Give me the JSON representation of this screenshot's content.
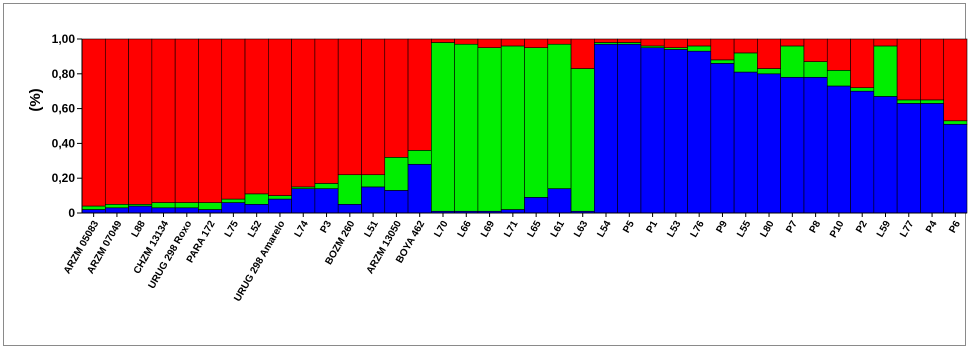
{
  "chart_data": {
    "type": "bar",
    "stacked": true,
    "normalized": true,
    "ylabel": "(%)",
    "xlabel": "",
    "ylim": [
      0,
      1
    ],
    "yticks": [
      "0",
      "0,20",
      "0,40",
      "0,60",
      "0,80",
      "1,00"
    ],
    "grid": false,
    "legend": "none",
    "colors": {
      "blue": "#0000ff",
      "green": "#00ee00",
      "red": "#ff0000"
    },
    "categories": [
      "ARZM 05083",
      "ARZM 07049",
      "L88",
      "CHZM 13134",
      "URUG 298 Roxo",
      "PARA 172",
      "L75",
      "L52",
      "URUG 298 Amarelo",
      "L74",
      "P3",
      "BOZM 260",
      "L51",
      "ARZM 13050",
      "BOYA 462",
      "L70",
      "L66",
      "L69",
      "L71",
      "L65",
      "L61",
      "L63",
      "L54",
      "P5",
      "P1",
      "L53",
      "L76",
      "P9",
      "L55",
      "L80",
      "P7",
      "P8",
      "P10",
      "P2",
      "L59",
      "L77",
      "P4",
      "P6"
    ],
    "series": [
      {
        "color": "blue",
        "values": [
          0.02,
          0.03,
          0.04,
          0.03,
          0.03,
          0.02,
          0.06,
          0.05,
          0.08,
          0.14,
          0.14,
          0.05,
          0.15,
          0.13,
          0.28,
          0.01,
          0.01,
          0.01,
          0.02,
          0.09,
          0.14,
          0.01,
          0.97,
          0.97,
          0.95,
          0.94,
          0.93,
          0.86,
          0.81,
          0.8,
          0.78,
          0.78,
          0.73,
          0.7,
          0.67,
          0.63,
          0.63,
          0.51
        ]
      },
      {
        "color": "green",
        "values": [
          0.02,
          0.02,
          0.01,
          0.03,
          0.03,
          0.04,
          0.02,
          0.06,
          0.02,
          0.01,
          0.03,
          0.17,
          0.07,
          0.19,
          0.08,
          0.97,
          0.96,
          0.94,
          0.94,
          0.86,
          0.83,
          0.82,
          0.01,
          0.01,
          0.01,
          0.01,
          0.03,
          0.02,
          0.11,
          0.03,
          0.18,
          0.09,
          0.09,
          0.02,
          0.29,
          0.02,
          0.02,
          0.02
        ]
      },
      {
        "color": "red",
        "values": [
          0.96,
          0.95,
          0.95,
          0.94,
          0.94,
          0.94,
          0.92,
          0.89,
          0.9,
          0.85,
          0.83,
          0.78,
          0.78,
          0.68,
          0.64,
          0.02,
          0.03,
          0.05,
          0.04,
          0.05,
          0.03,
          0.17,
          0.02,
          0.02,
          0.04,
          0.05,
          0.04,
          0.12,
          0.08,
          0.17,
          0.04,
          0.13,
          0.18,
          0.28,
          0.04,
          0.35,
          0.35,
          0.47
        ]
      }
    ]
  }
}
